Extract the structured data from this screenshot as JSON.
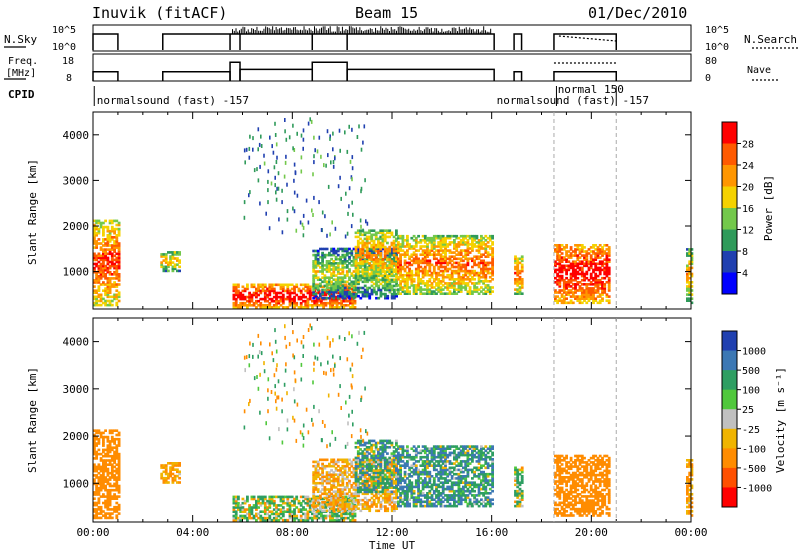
{
  "header": {
    "title": "Inuvik (fitACF)",
    "beam": "Beam 15",
    "date": "01/Dec/2010"
  },
  "top_panels": {
    "nsky_label": "N.Sky",
    "nsearch_label": "N.Search",
    "nsky_ticks": [
      "10^5",
      "10^0"
    ],
    "nsearch_ticks": [
      "10^5",
      "10^0"
    ],
    "freq_label": "Freq.",
    "freq_unit": "[MHz]",
    "freq_ticks": [
      "18",
      "8"
    ],
    "nave_label": "Nave",
    "nave_ticks": [
      "80",
      "0"
    ],
    "cpid_label": "CPID",
    "cpid_entries": [
      {
        "text": "normalsound (fast) -157",
        "start_h": 0.1
      },
      {
        "text": "normal 150",
        "start_h": 18.7
      },
      {
        "text": "normalsound (fast) -157",
        "start_h": 21.0
      }
    ]
  },
  "axes": {
    "ylabel": "Slant Range [km]",
    "xlabel": "Time UT",
    "x_ticks": [
      "00:00",
      "04:00",
      "08:00",
      "12:00",
      "16:00",
      "20:00",
      "00:00"
    ],
    "x_tick_hours": [
      0,
      4,
      8,
      12,
      16,
      20,
      24
    ],
    "y_ticks": [
      "4000",
      "3000",
      "2000",
      "1000"
    ],
    "y_tick_values": [
      4000,
      3000,
      2000,
      1000
    ],
    "ylim": [
      180,
      4500
    ],
    "xlim": [
      0,
      24
    ]
  },
  "power_scale": {
    "label": "Power [dB]",
    "ticks": [
      "28",
      "24",
      "20",
      "16",
      "12",
      "8",
      "4"
    ],
    "colors": [
      "#ff0000",
      "#ff5a00",
      "#ff9600",
      "#f5d200",
      "#73c84b",
      "#2f9a5a",
      "#2040b0",
      "#0000ff"
    ]
  },
  "velocity_scale": {
    "label": "Velocity [m s⁻¹]",
    "ticks": [
      "1000",
      "500",
      "100",
      "25",
      "-25",
      "-100",
      "-500",
      "-1000"
    ],
    "colors": [
      "#2040b0",
      "#3c78b4",
      "#2e9e62",
      "#50c83c",
      "#c0c0c0",
      "#f0b400",
      "#ff8c00",
      "#ff5000",
      "#ff0000"
    ]
  },
  "chart_data": {
    "type": "heatmap",
    "title": "Inuvik (fitACF)",
    "xlabel": "Time UT",
    "ylabel": "Slant Range [km]",
    "xlim": [
      0,
      24
    ],
    "ylim": [
      180,
      4500
    ],
    "panels": [
      "Power [dB]",
      "Velocity [m s⁻¹]"
    ],
    "echo_regions": [
      {
        "t0": 0.0,
        "t1": 1.0,
        "r0": 250,
        "r1": 2100,
        "power_db": 22,
        "velocity": -300
      },
      {
        "t0": 2.7,
        "t1": 3.5,
        "r0": 1000,
        "r1": 1450,
        "power_db": 16,
        "velocity": -100
      },
      {
        "t0": 5.6,
        "t1": 10.5,
        "r0": 200,
        "r1": 700,
        "power_db": 26,
        "velocity": 60
      },
      {
        "t0": 8.8,
        "t1": 12.2,
        "r0": 400,
        "r1": 1500,
        "power_db": 12,
        "velocity": -80
      },
      {
        "t0": 10.5,
        "t1": 12.2,
        "r0": 800,
        "r1": 1900,
        "power_db": 18,
        "velocity": 300
      },
      {
        "t0": 12.2,
        "t1": 16.0,
        "r0": 500,
        "r1": 1800,
        "power_db": 20,
        "velocity": 400
      },
      {
        "t0": 16.9,
        "t1": 17.2,
        "r0": 500,
        "r1": 1350,
        "power_db": 20,
        "velocity": 200
      },
      {
        "t0": 18.5,
        "t1": 20.7,
        "r0": 300,
        "r1": 1600,
        "power_db": 26,
        "velocity": -300
      },
      {
        "t0": 23.8,
        "t1": 24.0,
        "r0": 300,
        "r1": 1500,
        "power_db": 16,
        "velocity": -100
      }
    ],
    "freq_mhz_segments": [
      {
        "t0": 0.0,
        "t1": 1.0,
        "value": 11
      },
      {
        "t0": 2.8,
        "t1": 5.5,
        "value": 11
      },
      {
        "t0": 5.5,
        "t1": 5.9,
        "value": 15
      },
      {
        "t0": 5.9,
        "t1": 8.8,
        "value": 12
      },
      {
        "t0": 8.8,
        "t1": 10.2,
        "value": 15
      },
      {
        "t0": 10.2,
        "t1": 16.1,
        "value": 12
      },
      {
        "t0": 16.9,
        "t1": 17.2,
        "value": 11
      },
      {
        "t0": 18.5,
        "t1": 21.0,
        "value": 11
      }
    ],
    "nave_dotted_segment": {
      "t0": 18.5,
      "t1": 21.0,
      "value": 60
    }
  }
}
